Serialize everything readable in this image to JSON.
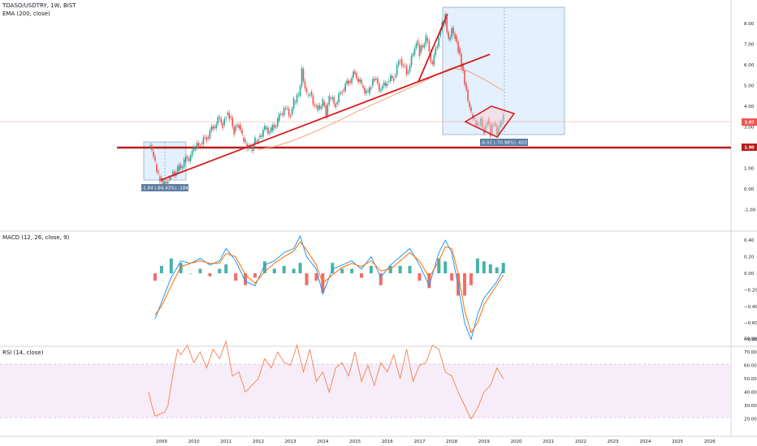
{
  "header": {
    "symbol_line": "TOASO/USDTRY, 1W, BIST",
    "ema_label": "EMA (200, close)",
    "macd_label": "MACD (12, 26, close, 9)",
    "rsi_label": "RSI (14, close)"
  },
  "colors": {
    "up": "#26a69a",
    "down": "#ef5350",
    "trendline": "#d81b1b",
    "support": "#b71c1c",
    "ema": "#f5a27a",
    "macd": "#2196f3",
    "signal": "#ff6d00",
    "rsi": "#f57d4f",
    "rsi_band": "#f3e5f5",
    "measure_fill": "#e3f0fd",
    "measure_tag": "#5d7ea3"
  },
  "price_tags": {
    "current": "3.07",
    "support": "1.90"
  },
  "measurements": [
    {
      "text": "-1.84 (-84.43%) -184"
    },
    {
      "text": "-6.02 (-70.98%) -602"
    }
  ],
  "chart_data": [
    {
      "type": "line",
      "panel": "price",
      "title": "TOASO/USDTRY, 1W, BIST",
      "x_ticks": [
        "2009",
        "2010",
        "2011",
        "2012",
        "2013",
        "2014",
        "2015",
        "2016",
        "2017",
        "2018",
        "2019",
        "2020",
        "2021",
        "2022",
        "2023",
        "2024",
        "2025",
        "2026"
      ],
      "y_ticks": [
        "8.00",
        "7.00",
        "6.00",
        "5.00",
        "4.00",
        "3.00",
        "2.00",
        "1.00",
        "0.00",
        "-1.00"
      ],
      "ylim": [
        -1.3,
        8.6
      ],
      "series": [
        {
          "x": [
            2008.6,
            2008.7,
            2008.8,
            2008.9,
            2009.0,
            2009.1,
            2009.2,
            2009.3,
            2009.5,
            2009.7,
            2009.9,
            2010.0,
            2010.2,
            2010.4,
            2010.6,
            2010.8,
            2010.9,
            2011.0,
            2011.1,
            2011.25,
            2011.4,
            2011.5,
            2011.6,
            2011.75,
            2011.9,
            2012.0,
            2012.2,
            2012.4,
            2012.6,
            2012.8,
            2013.0,
            2013.1,
            2013.25,
            2013.35,
            2013.5,
            2013.6,
            2013.8,
            2014.0,
            2014.1,
            2014.2,
            2014.4,
            2014.6,
            2014.8,
            2015.0,
            2015.2,
            2015.4,
            2015.5,
            2015.6,
            2015.8,
            2016.0,
            2016.2,
            2016.4,
            2016.6,
            2016.8,
            2016.9,
            2017.0,
            2017.2,
            2017.4,
            2017.6,
            2017.7,
            2017.8,
            2017.9,
            2018.0,
            2018.1,
            2018.2,
            2018.3,
            2018.4,
            2018.5,
            2018.6,
            2018.7,
            2018.8,
            2018.9,
            2019.0,
            2019.1,
            2019.2,
            2019.3,
            2019.4,
            2019.5,
            2019.6
          ],
          "values": [
            2.1,
            1.8,
            1.2,
            0.6,
            0.4,
            0.35,
            0.45,
            0.7,
            0.9,
            1.3,
            1.6,
            1.9,
            2.2,
            2.5,
            3.0,
            3.4,
            3.1,
            3.6,
            3.5,
            2.8,
            3.1,
            2.5,
            2.2,
            1.9,
            2.3,
            2.5,
            2.9,
            2.8,
            3.3,
            3.9,
            3.6,
            4.2,
            4.5,
            5.8,
            4.5,
            4.7,
            3.8,
            4.2,
            3.5,
            4.4,
            4.1,
            4.8,
            5.2,
            5.6,
            5.0,
            4.6,
            5.0,
            5.3,
            4.8,
            5.2,
            5.4,
            6.3,
            5.6,
            6.5,
            7.2,
            6.6,
            7.3,
            6.0,
            7.4,
            7.9,
            8.3,
            7.2,
            7.8,
            7.4,
            6.8,
            6.0,
            5.1,
            4.2,
            3.6,
            3.3,
            3.1,
            3.4,
            2.8,
            3.4,
            2.7,
            3.2,
            2.6,
            3.1,
            3.4
          ]
        },
        {
          "name": "EMA (200, close)",
          "x": [
            2012.0,
            2012.5,
            2013.0,
            2013.5,
            2014.0,
            2014.5,
            2015.0,
            2015.5,
            2016.0,
            2016.5,
            2017.0,
            2017.5,
            2018.0,
            2018.5,
            2019.0,
            2019.6
          ],
          "values": [
            1.9,
            2.05,
            2.3,
            2.6,
            2.95,
            3.3,
            3.7,
            4.05,
            4.4,
            4.75,
            5.1,
            5.5,
            5.85,
            5.7,
            5.3,
            4.75
          ]
        }
      ]
    },
    {
      "type": "line",
      "panel": "macd",
      "title": "MACD (12, 26, close, 9)",
      "y_ticks": [
        "0.40",
        "0.20",
        "0.00",
        "−0.20",
        "−0.40",
        "−0.60",
        "−0.80"
      ],
      "ylim": [
        -0.92,
        0.46
      ],
      "series": [
        {
          "x": [
            2008.8,
            2009.0,
            2009.3,
            2009.6,
            2009.9,
            2010.2,
            2010.5,
            2010.8,
            2011.0,
            2011.3,
            2011.6,
            2011.9,
            2012.2,
            2012.5,
            2012.8,
            2013.1,
            2013.3,
            2013.5,
            2013.8,
            2014.0,
            2014.3,
            2014.6,
            2014.9,
            2015.2,
            2015.5,
            2015.8,
            2016.1,
            2016.4,
            2016.7,
            2017.0,
            2017.3,
            2017.6,
            2017.8,
            2018.0,
            2018.2,
            2018.4,
            2018.6,
            2018.8,
            2019.0,
            2019.2,
            2019.4,
            2019.6
          ],
          "values": [
            -0.55,
            -0.35,
            -0.05,
            0.15,
            0.12,
            0.18,
            0.1,
            0.15,
            0.3,
            0.15,
            -0.1,
            -0.15,
            0.1,
            0.15,
            0.25,
            0.3,
            0.45,
            0.2,
            0.05,
            -0.25,
            0.05,
            0.1,
            0.15,
            0.05,
            0.2,
            -0.05,
            0.1,
            0.2,
            0.3,
            0.1,
            -0.15,
            0.25,
            0.4,
            0.25,
            -0.15,
            -0.6,
            -0.8,
            -0.5,
            -0.3,
            -0.2,
            -0.1,
            0.05
          ]
        },
        {
          "x": [
            2008.8,
            2009.0,
            2009.3,
            2009.6,
            2009.9,
            2010.2,
            2010.5,
            2010.8,
            2011.0,
            2011.3,
            2011.6,
            2011.9,
            2012.2,
            2012.5,
            2012.8,
            2013.1,
            2013.3,
            2013.5,
            2013.8,
            2014.0,
            2014.3,
            2014.6,
            2014.9,
            2015.2,
            2015.5,
            2015.8,
            2016.1,
            2016.4,
            2016.7,
            2017.0,
            2017.3,
            2017.6,
            2017.8,
            2018.0,
            2018.2,
            2018.4,
            2018.6,
            2018.8,
            2019.0,
            2019.2,
            2019.4,
            2019.6
          ],
          "values": [
            -0.5,
            -0.4,
            -0.15,
            0.08,
            0.12,
            0.15,
            0.12,
            0.12,
            0.24,
            0.2,
            -0.02,
            -0.12,
            0.02,
            0.12,
            0.2,
            0.27,
            0.38,
            0.28,
            0.1,
            -0.12,
            -0.02,
            0.07,
            0.12,
            0.08,
            0.15,
            0.03,
            0.05,
            0.15,
            0.25,
            0.15,
            -0.05,
            0.15,
            0.32,
            0.3,
            0.0,
            -0.45,
            -0.72,
            -0.6,
            -0.38,
            -0.26,
            -0.14,
            -0.02
          ]
        }
      ]
    },
    {
      "type": "line",
      "panel": "rsi",
      "title": "RSI (14, close)",
      "y_ticks": [
        "80.00",
        "70.00",
        "60.00",
        "50.00",
        "40.00",
        "30.00",
        "20.00"
      ],
      "ylim": [
        17,
        82
      ],
      "series": [
        {
          "x": [
            2008.6,
            2008.7,
            2008.8,
            2008.9,
            2009.0,
            2009.1,
            2009.2,
            2009.3,
            2009.4,
            2009.5,
            2009.6,
            2009.8,
            2010.0,
            2010.2,
            2010.4,
            2010.6,
            2010.8,
            2011.0,
            2011.2,
            2011.4,
            2011.6,
            2011.8,
            2012.0,
            2012.2,
            2012.4,
            2012.6,
            2012.8,
            2013.0,
            2013.2,
            2013.4,
            2013.6,
            2013.8,
            2014.0,
            2014.2,
            2014.4,
            2014.6,
            2014.8,
            2015.0,
            2015.2,
            2015.4,
            2015.6,
            2015.8,
            2016.0,
            2016.2,
            2016.4,
            2016.6,
            2016.8,
            2017.0,
            2017.2,
            2017.4,
            2017.6,
            2017.8,
            2018.0,
            2018.2,
            2018.4,
            2018.6,
            2018.8,
            2019.0,
            2019.2,
            2019.4,
            2019.6
          ],
          "values": [
            40,
            30,
            22,
            23,
            24,
            25,
            30,
            45,
            60,
            72,
            68,
            75,
            62,
            70,
            58,
            72,
            65,
            78,
            52,
            55,
            40,
            45,
            50,
            65,
            58,
            70,
            62,
            60,
            75,
            55,
            72,
            48,
            55,
            40,
            58,
            62,
            52,
            70,
            48,
            60,
            45,
            62,
            55,
            68,
            50,
            72,
            48,
            60,
            62,
            75,
            72,
            55,
            52,
            40,
            30,
            20,
            28,
            40,
            45,
            58,
            50
          ]
        }
      ]
    }
  ]
}
